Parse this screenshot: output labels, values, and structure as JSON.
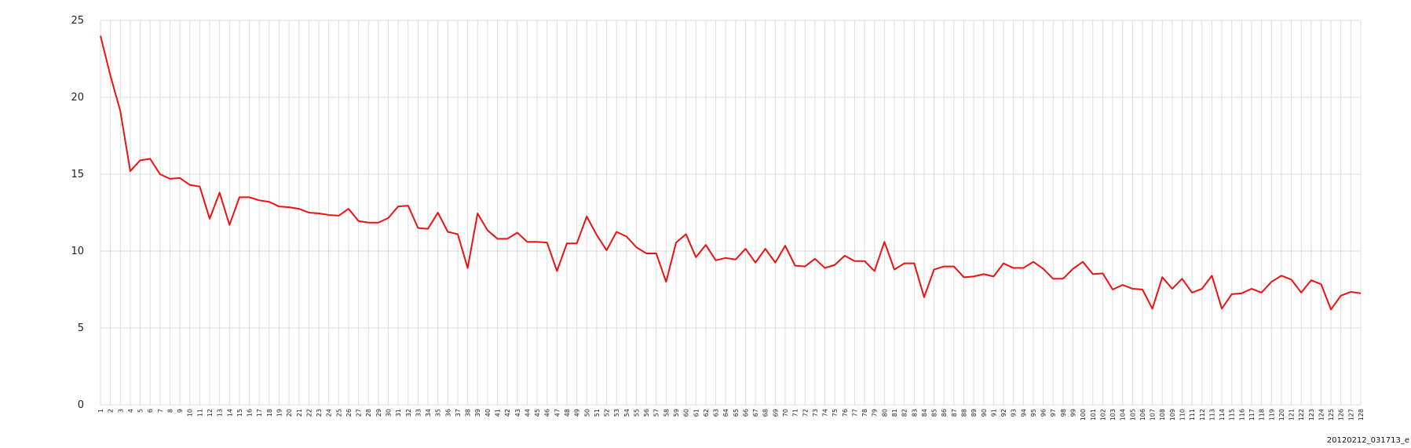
{
  "caption": "20120212_031713_e",
  "chart_data": {
    "type": "line",
    "title": "",
    "xlabel": "",
    "ylabel": "",
    "ylim": [
      0,
      25
    ],
    "yticks": [
      0,
      5,
      10,
      15,
      20,
      25
    ],
    "grid": true,
    "x": [
      1,
      2,
      3,
      4,
      5,
      6,
      7,
      8,
      9,
      10,
      11,
      12,
      13,
      14,
      15,
      16,
      17,
      18,
      19,
      20,
      21,
      22,
      23,
      24,
      25,
      26,
      27,
      28,
      29,
      30,
      31,
      32,
      33,
      34,
      35,
      36,
      37,
      38,
      39,
      40,
      41,
      42,
      43,
      44,
      45,
      46,
      47,
      48,
      49,
      50,
      51,
      52,
      53,
      54,
      55,
      56,
      57,
      58,
      59,
      60,
      61,
      62,
      63,
      64,
      65,
      66,
      67,
      68,
      69,
      70,
      71,
      72,
      73,
      74,
      75,
      76,
      77,
      78,
      79,
      80,
      81,
      82,
      83,
      84,
      85,
      86,
      87,
      88,
      89,
      90,
      91,
      92,
      93,
      94,
      95,
      96,
      97,
      98,
      99,
      100,
      101,
      102,
      103,
      104,
      105,
      106,
      107,
      108,
      109,
      110,
      111,
      112,
      113,
      114,
      115,
      116,
      117,
      118,
      119,
      120,
      121,
      122,
      123,
      124,
      125,
      126,
      127,
      128
    ],
    "series": [
      {
        "color": "#ee1111",
        "values": [
          24.0,
          21.4,
          19.1,
          15.2,
          15.9,
          16.0,
          15.0,
          14.7,
          14.75,
          14.3,
          14.2,
          12.1,
          13.8,
          11.7,
          13.5,
          13.5,
          13.3,
          13.2,
          12.9,
          12.85,
          12.75,
          12.5,
          12.45,
          12.35,
          12.3,
          12.75,
          11.95,
          11.85,
          11.85,
          12.15,
          12.9,
          12.95,
          11.5,
          11.45,
          12.5,
          11.25,
          11.1,
          8.9,
          12.45,
          11.35,
          10.8,
          10.8,
          11.2,
          10.6,
          10.6,
          10.55,
          8.7,
          10.5,
          10.5,
          12.25,
          11.05,
          10.05,
          11.25,
          10.95,
          10.25,
          9.85,
          9.85,
          8.0,
          10.55,
          11.1,
          9.6,
          10.4,
          9.4,
          9.55,
          9.45,
          10.15,
          9.25,
          10.15,
          9.25,
          10.35,
          9.05,
          9.0,
          9.5,
          8.9,
          9.1,
          9.7,
          9.35,
          9.35,
          8.7,
          10.6,
          8.8,
          9.2,
          9.2,
          7.0,
          8.8,
          9.0,
          9.0,
          8.3,
          8.35,
          8.5,
          8.35,
          9.2,
          8.9,
          8.9,
          9.3,
          8.85,
          8.2,
          8.2,
          8.85,
          9.3,
          8.5,
          8.55,
          7.5,
          7.8,
          7.55,
          7.5,
          6.25,
          8.3,
          7.55,
          8.2,
          7.3,
          7.55,
          8.4,
          6.25,
          7.2,
          7.25,
          7.55,
          7.3,
          8.0,
          8.4,
          8.15,
          7.3,
          8.1,
          7.85,
          6.2,
          7.1,
          7.35,
          7.25
        ]
      }
    ]
  }
}
